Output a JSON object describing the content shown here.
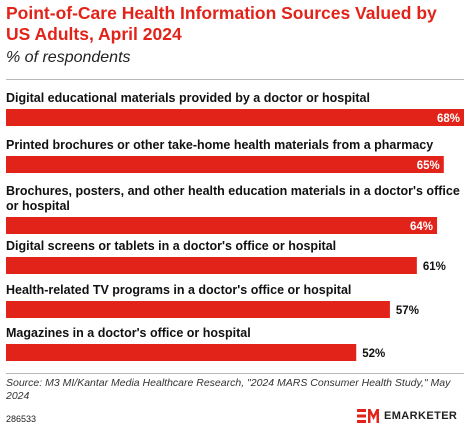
{
  "title": "Point-of-Care Health Information Sources Valued by US Adults, April 2024",
  "subtitle": "% of respondents",
  "footnote": "Source: M3 MI/Kantar Media Healthcare Research, \"2024 MARS Consumer Health Study,\" May 2024",
  "chart_id": "286533",
  "brand": {
    "name": "EMARKETER",
    "accent": "#e2231a"
  },
  "chart_data": {
    "type": "bar",
    "orientation": "horizontal",
    "categories": [
      [
        "Digital educational materials provided by a doctor or hospital"
      ],
      [
        "Printed brochures or other take-home health materials from a pharmacy"
      ],
      [
        "Brochures, posters, and other health education materials in a doctor's office",
        "or hospital"
      ],
      [
        "Digital screens or tablets in a doctor's office or hospital"
      ],
      [
        "Health-related TV programs in a doctor's office or hospital"
      ],
      [
        "Magazines in a doctor's office or hospital"
      ]
    ],
    "values": [
      68,
      65,
      64,
      61,
      57,
      52
    ],
    "value_labels": [
      "68%",
      "65%",
      "64%",
      "61%",
      "57%",
      "52%"
    ],
    "xlim": [
      0,
      68
    ],
    "grid": false,
    "bar_color": "#e2231a"
  }
}
